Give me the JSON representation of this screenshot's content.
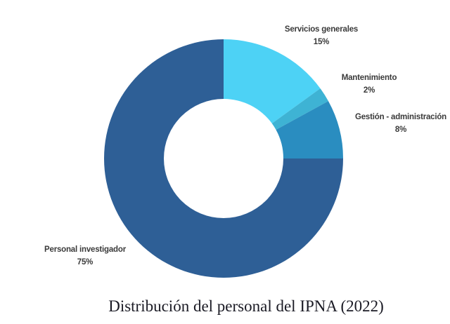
{
  "page": {
    "background": "#ffffff"
  },
  "chart_data": {
    "type": "pie",
    "subtype": "donut",
    "title": "Distribución del personal del IPNA (2022)",
    "start_angle_deg": 0,
    "direction": "clockwise",
    "inner_radius_ratio": 0.5,
    "legend_position": "outside-callout-labels",
    "label_color": "#3a3a3a",
    "title_color": "#1a1a24",
    "segments": [
      {
        "label": "Servicios generales",
        "value": 15,
        "pct_label": "15%",
        "color": "#4dd2f5"
      },
      {
        "label": "Mantenimiento",
        "value": 2,
        "pct_label": "2%",
        "color": "#3eb3d4"
      },
      {
        "label": "Gestión - administración",
        "value": 8,
        "pct_label": "8%",
        "color": "#2a8dc0"
      },
      {
        "label": "Personal investigador",
        "value": 75,
        "pct_label": "75%",
        "color": "#2e5f96"
      }
    ]
  }
}
